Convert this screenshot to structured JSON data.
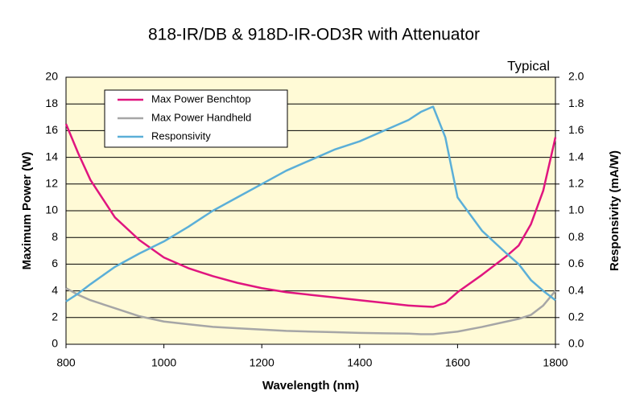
{
  "chart_data": {
    "type": "line",
    "title": "818-IR/DB & 918D-IR-OD3R with Attenuator",
    "annotation": "Typical",
    "x_label": "Wavelength (nm)",
    "y_label": "Maximum Power (W)",
    "y2_label": "Responsivity (mA/W)",
    "x": [
      800,
      825,
      850,
      900,
      950,
      1000,
      1050,
      1100,
      1150,
      1200,
      1250,
      1300,
      1350,
      1400,
      1450,
      1500,
      1525,
      1550,
      1575,
      1600,
      1650,
      1700,
      1725,
      1750,
      1775,
      1800
    ],
    "series": [
      {
        "name": "Max Power Benchtop",
        "color": "#e0157f",
        "values": [
          16.5,
          14.3,
          12.3,
          9.5,
          7.8,
          6.5,
          5.7,
          5.1,
          4.6,
          4.2,
          3.9,
          3.7,
          3.5,
          3.3,
          3.1,
          2.9,
          2.85,
          2.8,
          3.1,
          3.9,
          5.2,
          6.6,
          7.4,
          9,
          11.5,
          15.5
        ]
      },
      {
        "name": "Max Power Handheld",
        "color": "#a6a6a6",
        "values": [
          4.2,
          3.7,
          3.3,
          2.7,
          2.1,
          1.7,
          1.5,
          1.3,
          1.2,
          1.1,
          1.0,
          0.95,
          0.9,
          0.85,
          0.82,
          0.8,
          0.75,
          0.75,
          0.85,
          0.95,
          1.3,
          1.7,
          1.9,
          2.2,
          2.9,
          4.0
        ]
      },
      {
        "name": "Responsivity",
        "color": "#5bafd8",
        "axis": "y2",
        "values": [
          0.32,
          0.38,
          0.45,
          0.58,
          0.68,
          0.77,
          0.88,
          1.0,
          1.1,
          1.2,
          1.3,
          1.38,
          1.46,
          1.52,
          1.6,
          1.68,
          1.74,
          1.78,
          1.55,
          1.1,
          0.85,
          0.68,
          0.6,
          0.48,
          0.4,
          0.33
        ]
      }
    ],
    "xlim": [
      800,
      1800
    ],
    "xticks": [
      800,
      1000,
      1200,
      1400,
      1600,
      1800
    ],
    "ylim": [
      0,
      20
    ],
    "yticks": [
      0,
      2,
      4,
      6,
      8,
      10,
      12,
      14,
      16,
      18,
      20
    ],
    "y2lim": [
      0,
      2
    ],
    "y2ticks": [
      {
        "value": 0,
        "label": "0.0"
      },
      0.2,
      0.4,
      0.6,
      0.8,
      {
        "value": 1,
        "label": "1.0"
      },
      1.2,
      1.4,
      1.6,
      1.8,
      {
        "value": 2,
        "label": "2.0"
      }
    ],
    "grid": true,
    "legend": "upper left",
    "plot_background": "#fffad6"
  }
}
